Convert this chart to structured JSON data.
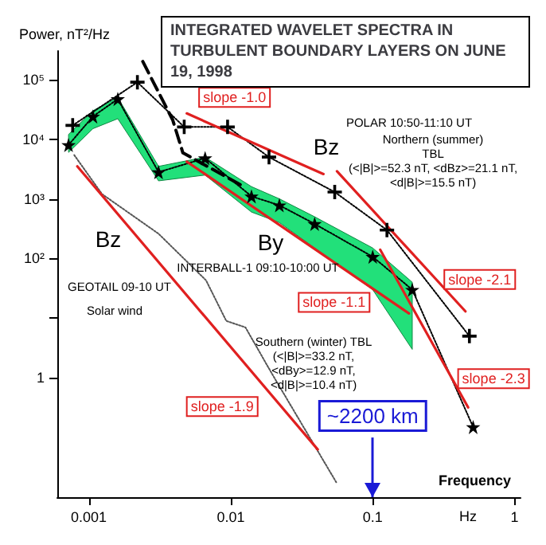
{
  "chart_data": {
    "type": "line",
    "title": "INTEGRATED WAVELET SPECTRA IN TURBULENT BOUNDARY LAYERS ON JUNE 19, 1998",
    "ylabel": "Power, nT²/Hz",
    "xlabel": "Frequency",
    "log": "xy",
    "grid": false,
    "legend": false,
    "xlim": [
      0.0006,
      1.1
    ],
    "xticks": [
      0.001,
      0.01,
      0.1,
      1
    ],
    "ylim": [
      0.01,
      300000
    ],
    "yticks": [
      1,
      {
        "value": 10,
        "label": null
      },
      {
        "value": 100,
        "label": "10²"
      },
      {
        "value": 1000,
        "label": "10³"
      },
      {
        "value": 10000,
        "label": "10⁴"
      },
      {
        "value": 100000,
        "label": "10⁵"
      }
    ],
    "series": [
      {
        "color": "#000000",
        "marker": "cross",
        "line_style": "dotted",
        "x": [
          0.00077,
          0.0022,
          0.0047,
          0.0095,
          0.0186,
          0.054,
          0.126,
          0.48
        ],
        "values": [
          17000,
          90000,
          16000,
          16000,
          5000,
          1300,
          300,
          5
        ]
      },
      {
        "color": "#000000",
        "marker": "star",
        "line_style": "dotted",
        "x": [
          0.00072,
          0.00107,
          0.0016,
          0.0031,
          0.0066,
          0.014,
          0.022,
          0.039,
          0.1,
          0.19,
          0.51
        ],
        "values": [
          8000,
          24000,
          47000,
          2800,
          4800,
          1100,
          780,
          380,
          107,
          30,
          0.15
        ],
        "lower": [
          6000,
          15000,
          22000,
          2000,
          2500,
          600,
          400,
          150,
          30,
          3,
          null
        ],
        "upper": [
          12000,
          30000,
          50000,
          3500,
          5000,
          1600,
          1000,
          500,
          150,
          40,
          null
        ]
      },
      {
        "color": "#555555",
        "marker": "none",
        "line_style": "dotted",
        "x": [
          0.00079,
          0.00124,
          0.0031,
          0.0067,
          0.0093,
          0.0127,
          0.0194,
          0.056
        ],
        "values": [
          5400,
          1200,
          260,
          43,
          9,
          7,
          1.2,
          0.017
        ]
      },
      {
        "color": "#000000",
        "marker": "none",
        "line_style": "dashed",
        "x": [
          0.0024,
          0.0039,
          0.0046,
          0.0118
        ],
        "values": [
          200000,
          21000,
          5900,
          1700
        ]
      },
      {
        "name": "slope -1.0",
        "color": "#e02020",
        "marker": "none",
        "line_style": "solid",
        "x": [
          0.0049,
          0.045
        ],
        "values": [
          27000,
          2600
        ]
      },
      {
        "name": "slope -1.1",
        "color": "#e02020",
        "marker": "none",
        "line_style": "solid",
        "x": [
          0.0049,
          0.18
        ],
        "values": [
          4200,
          12
        ]
      },
      {
        "name": "slope -2.1",
        "color": "#e02020",
        "marker": "none",
        "line_style": "solid",
        "x": [
          0.056,
          0.45
        ],
        "values": [
          2900,
          13
        ]
      },
      {
        "name": "slope -2.3",
        "color": "#e02020",
        "marker": "none",
        "line_style": "solid",
        "x": [
          0.113,
          0.47
        ],
        "values": [
          140,
          0.32
        ]
      },
      {
        "name": "slope -1.9",
        "color": "#e02020",
        "marker": "none",
        "line_style": "solid",
        "x": [
          0.00083,
          0.041
        ],
        "values": [
          3500,
          0.063
        ]
      }
    ],
    "ref_lines": [
      {
        "axis": "x",
        "value": 0.1,
        "label": "~2200 km",
        "color": "#1a1ad6"
      }
    ],
    "annotations": [
      "POLAR 10:50-11:10 UT",
      "Northern (summer)\nTBL\n(<|B|>=52.3 nT, <dBz>=21.1 nT,\n<d|B|>=15.5 nT)",
      "Bz",
      "By",
      "INTERBALL-1 09:10-10:00 UT",
      "Southern (winter) TBL\n(<|B|>=33.2 nT,\n<dBy>=12.9 nT,\n<d|B|>=10.4 nT)",
      "Bz",
      "GEOTAIL 09-10 UT",
      "Solar wind",
      "Hz"
    ]
  }
}
